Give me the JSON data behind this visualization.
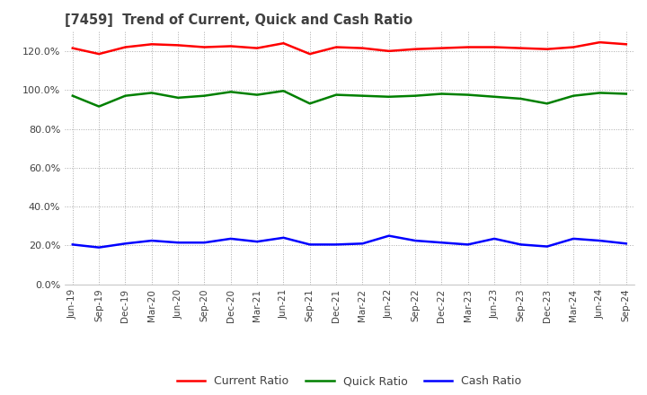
{
  "title": "[7459]  Trend of Current, Quick and Cash Ratio",
  "x_labels": [
    "Jun-19",
    "Sep-19",
    "Dec-19",
    "Mar-20",
    "Jun-20",
    "Sep-20",
    "Dec-20",
    "Mar-21",
    "Jun-21",
    "Sep-21",
    "Dec-21",
    "Mar-22",
    "Jun-22",
    "Sep-22",
    "Dec-22",
    "Mar-23",
    "Jun-23",
    "Sep-23",
    "Dec-23",
    "Mar-24",
    "Jun-24",
    "Sep-24"
  ],
  "current_ratio": [
    121.5,
    118.5,
    122.0,
    123.5,
    123.0,
    122.0,
    122.5,
    121.5,
    124.0,
    118.5,
    122.0,
    121.5,
    120.0,
    121.0,
    121.5,
    122.0,
    122.0,
    121.5,
    121.0,
    122.0,
    124.5,
    123.5
  ],
  "quick_ratio": [
    97.0,
    91.5,
    97.0,
    98.5,
    96.0,
    97.0,
    99.0,
    97.5,
    99.5,
    93.0,
    97.5,
    97.0,
    96.5,
    97.0,
    98.0,
    97.5,
    96.5,
    95.5,
    93.0,
    97.0,
    98.5,
    98.0
  ],
  "cash_ratio": [
    20.5,
    19.0,
    21.0,
    22.5,
    21.5,
    21.5,
    23.5,
    22.0,
    24.0,
    20.5,
    20.5,
    21.0,
    25.0,
    22.5,
    21.5,
    20.5,
    23.5,
    20.5,
    19.5,
    23.5,
    22.5,
    21.0
  ],
  "current_color": "#FF0000",
  "quick_color": "#008000",
  "cash_color": "#0000FF",
  "bg_color": "#FFFFFF",
  "grid_color": "#AAAAAA",
  "title_color": "#404040",
  "ylim": [
    0,
    130
  ],
  "yticks": [
    0,
    20,
    40,
    60,
    80,
    100,
    120
  ],
  "legend_labels": [
    "Current Ratio",
    "Quick Ratio",
    "Cash Ratio"
  ]
}
